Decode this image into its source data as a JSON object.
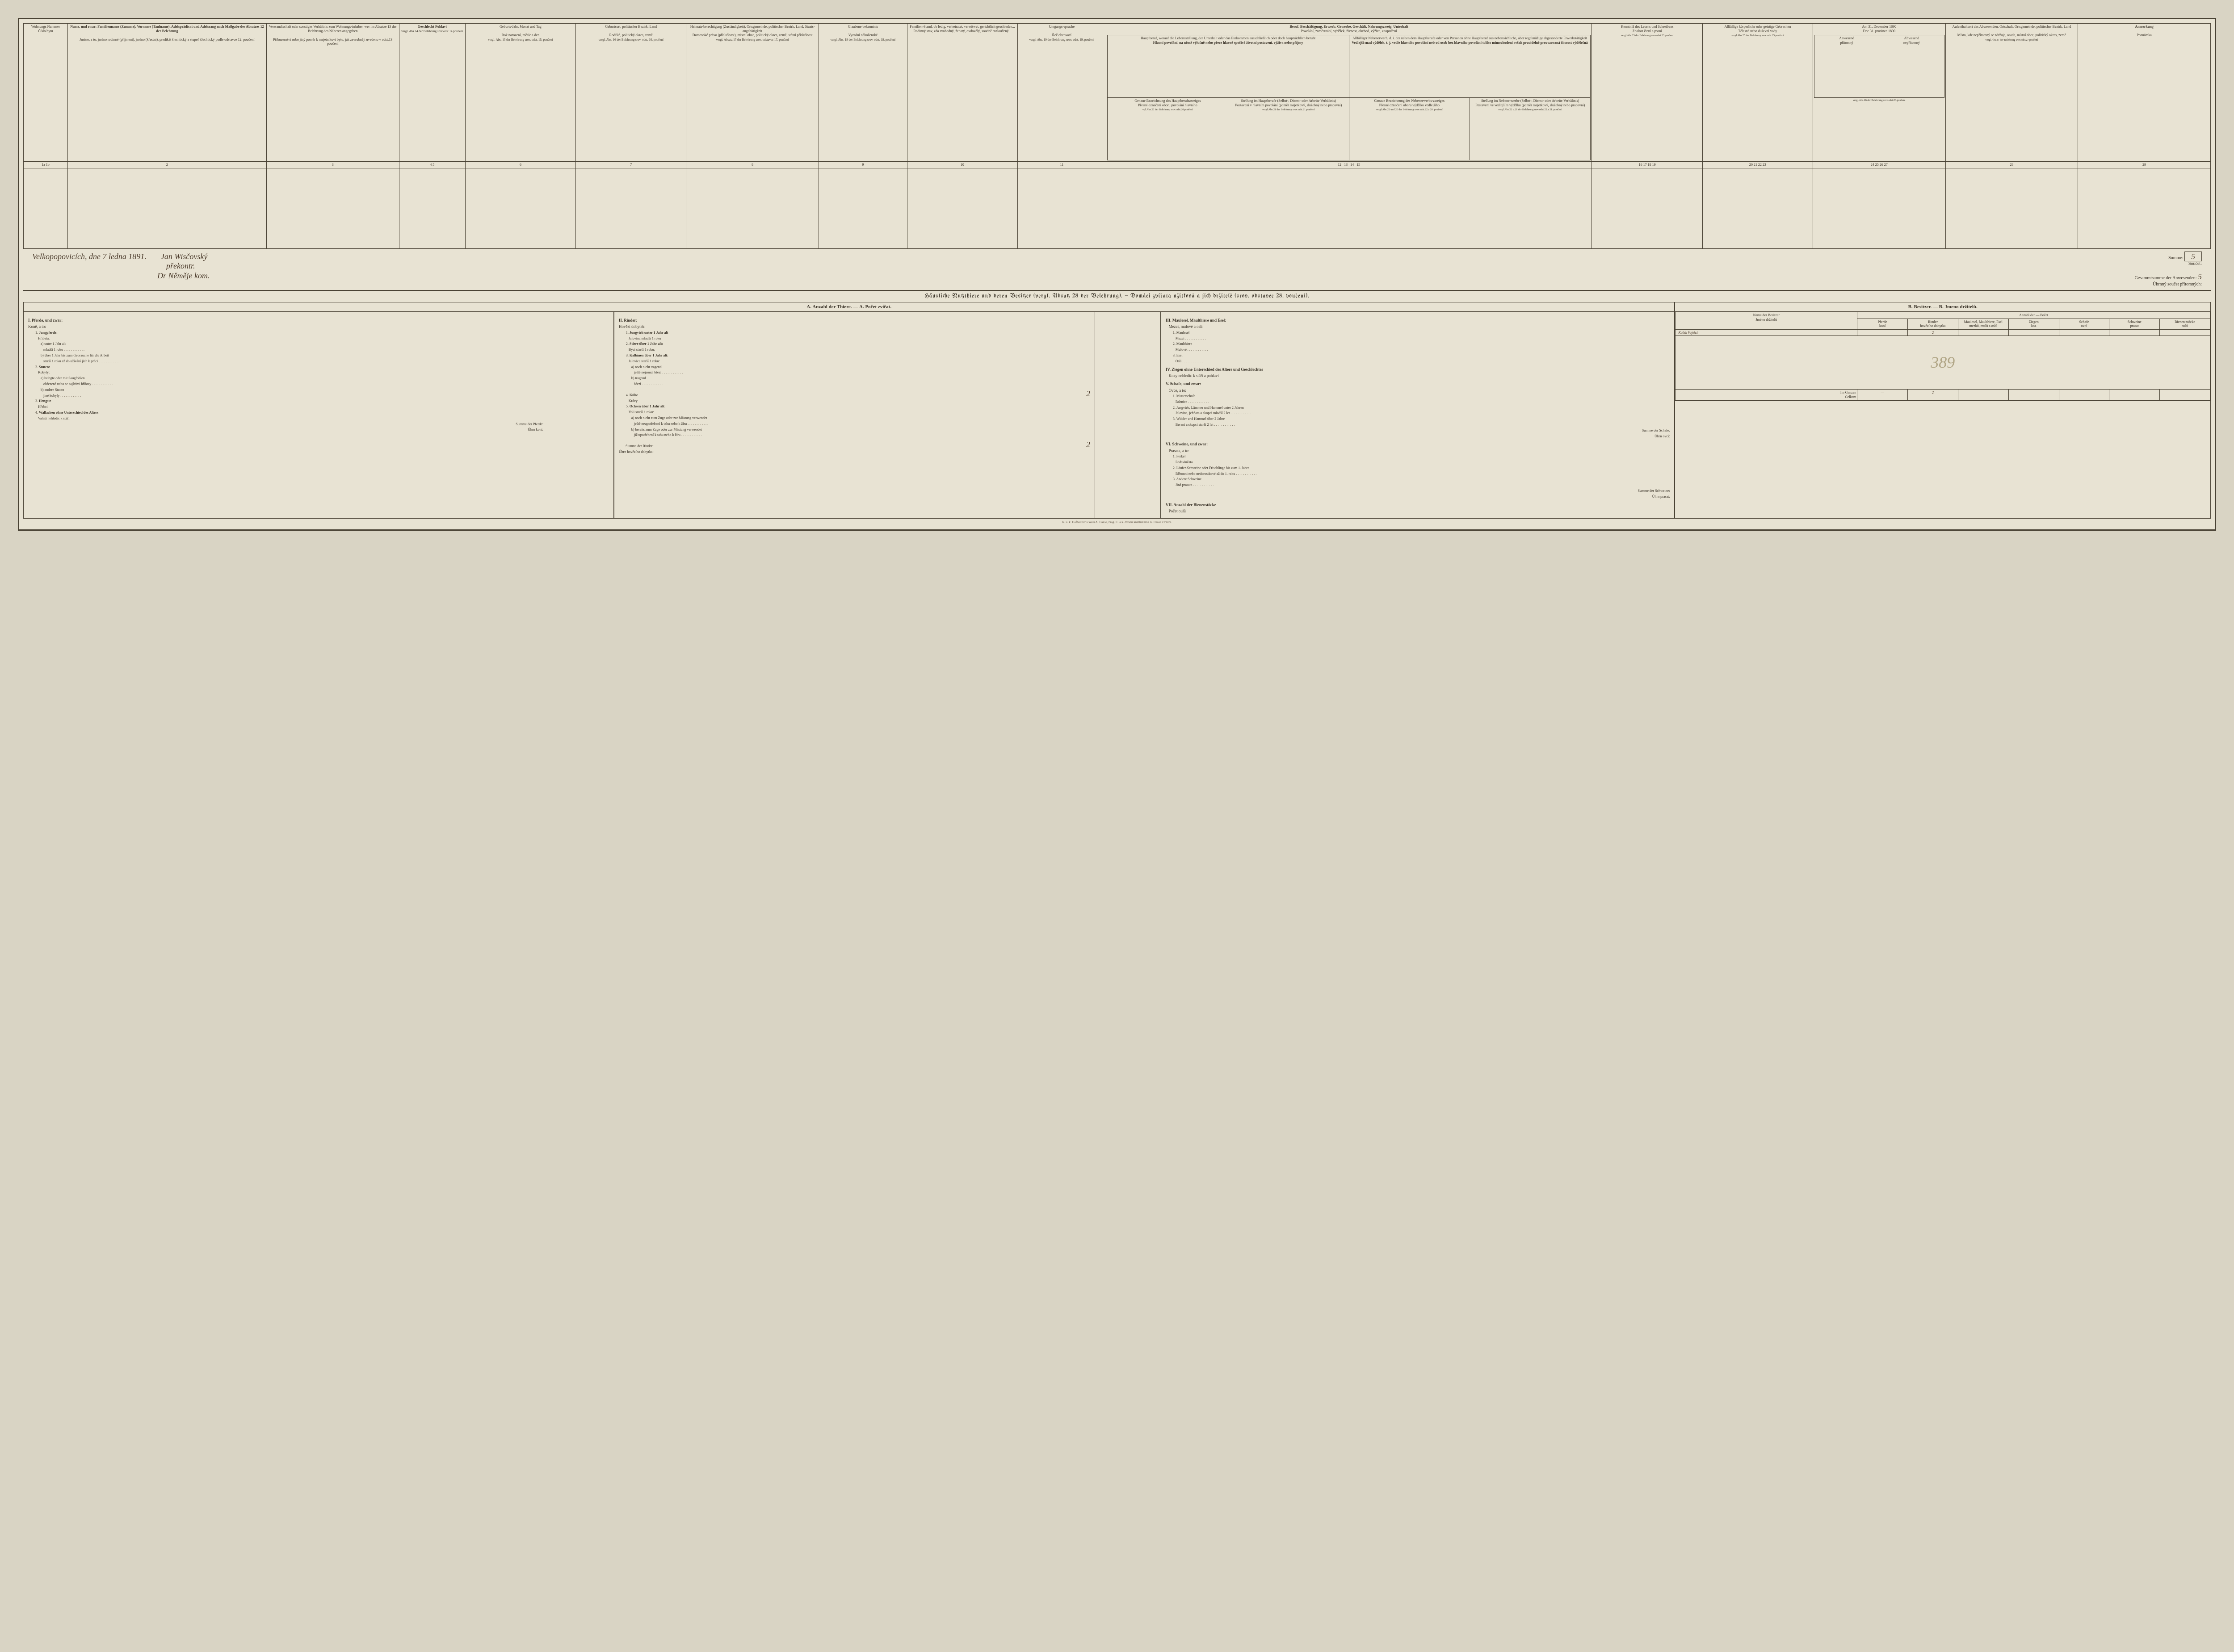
{
  "top_grid": {
    "columns": [
      {
        "num": "1a 1b",
        "de": "Wohnungs Nummer",
        "cz": "Číslo bytu"
      },
      {
        "num": "2",
        "de": "Name, und zwar: Familienname (Zuname), Vorname (Taufname), Adelsprädicat und Adelsrang nach Maßgabe des Absatzes 12 der Belehrung",
        "cz": "Jméno, a to: jméno rodinné (příjmení), jméno (křestní), predikát šlechtický a stupeň šlechtický podle odstavce 12. poučení"
      },
      {
        "num": "3",
        "de": "Verwandtschaft oder sonstiges Verhältnis zum Wohnungs-inhaber, wer im Absatze 13 der Belehrung des Näheren angegeben",
        "cz": "Příbuzenství nebo jiný poměr k majetníkovi bytu, jak zevrubněji uvedeno v odst.13 poučení"
      },
      {
        "num": "4 5",
        "de": "Geschlecht Pohlaví",
        "ref": "vergl. Abs.14 der Belehrung srov.odst.14 poučení",
        "sub_a": "männlich mužské",
        "sub_b": "weiblich ženské"
      },
      {
        "num": "6",
        "de": "Geburts-Jahr, Monat und Tag",
        "cz": "Rok narození, měsíc a den",
        "ref": "vergl. Abs. 15 der Belehrung srov. odst. 15. poučení"
      },
      {
        "num": "7",
        "de": "Geburtsort, politischer Bezirk, Land",
        "cz": "Rodiště, politický okres, země",
        "ref": "vergl. Abs. 16 der Belehrung srov. odst. 16. poučení"
      },
      {
        "num": "8",
        "de": "Heimats-berechtigung (Zuständigkeit), Ortsgemeinde, politischer Bezirk, Land, Staats-angehörigkeit",
        "cz": "Domovské právo (příslušnost), místní obec, politický okres, země, státní příslušnost",
        "ref": "vergl. Absatz 17 der Belehrung srov. odstavec 17. poučení"
      },
      {
        "num": "9",
        "de": "Glaubens-bekenntnis",
        "cz": "Vyznání náboženské",
        "ref": "vergl. Abs. 18 der Belehrung srov. odst. 18. poučení"
      },
      {
        "num": "10",
        "de": "Familien-Stand, ob ledig, verheiratet, verwitwet, gerichtlich geschieden...",
        "cz": "Rodinný stav, zda svobodný, ženatý, ovdovělý, soudně rozloučený..."
      },
      {
        "num": "11",
        "de": "Umgangs-sprache",
        "cz": "Řeč obcovací",
        "ref": "vergl. Abs. 19 der Belehrung srov. odst. 19. poučení"
      },
      {
        "num": "12-15",
        "de": "Beruf, Beschäftigung, Erwerb, Gewerbe, Geschäft, Nahrungszweig, Unterhalt",
        "cz": "Povolání, zaměstnání, výdělek, živnost, obchod, výživa, zaopatření",
        "subcols": [
          {
            "num": "12",
            "de": "Hauptberuf, worauf die Lebensstellung, der Unterhalt oder das Einkommen ausschließlich oder doch hauptsächlich beruht",
            "cz": "Hlavní povolání, na němž výlučně nebo přece hlavně spočívá životní postavení, výživa nebo příjmy",
            "de2": "Genaue Bezeichnung des Hauptberufszweiges",
            "cz2": "Přesné označení oboru povolání hlavního",
            "ref": "vgl.Abs.20 der Belehrung srov.odst.20.poučení"
          },
          {
            "num": "13",
            "de": "Stellung im Hauptberufe (Selbst-, Dienst- oder Arbeits-Verhältnis)",
            "cz": "Postavení v hlavním povolání (poměr majetkový, služebný nebo pracovní)",
            "ref": "vergl.Abs.21 der Belehrung srov.odst.21.poučení"
          },
          {
            "num": "14",
            "de": "Allfälliger Nebenerwerb, d. i. der neben dem Hauptberufe oder von Personen ohne Hauptberuf aus nebensächliche, aber regelmäßige abgesonderte Erwerbstätigkeit",
            "cz": "Vedlejší snad výdělek, t. j. vedle hlavního povolání neb od osob bez hlavního povolání toliko mimochodení avšak pravidelně provozovaná činnost výdělečná",
            "de2": "Genaue Bezeichnung des Nebenerwerbs-zweiges",
            "cz2": "Přesné označení oboru výdělku vedlejšího",
            "ref": "vergl.Abs.22 und 20 der Belehrung srov.odst.22.a 20. poučení"
          },
          {
            "num": "15",
            "de": "Stellung im Nebenerwerbe (Selbst-, Dienst- oder Arbeits-Verhältnis)",
            "cz": "Postavení ve vedlejším výdělku (poměr majetkový, služebný nebo pracovní)",
            "ref": "vergl.Abs.22 u.21 der Belehrung srov.odst.22.a 21. poučení"
          }
        ]
      },
      {
        "num": "16-19",
        "de": "Kenntniß des Lesens und Schreibens",
        "cz": "Znalost čtení a psaní",
        "ref": "vergl.Abs.23 der Belehrung srov.odst.23 poučení",
        "subcols": [
          {
            "num": "16",
            "de": "Besitzer dieses",
            "cz": "Držitel domu"
          },
          {
            "num": "17",
            "de": "Grundbesitzer",
            "cz": "Držitel pozemku"
          },
          {
            "num": "18",
            "de": "kann nur lesen",
            "cz": "zná toliko čísti"
          },
          {
            "num": "19",
            "de": "weder lesen noch schreiben",
            "cz": "ani čísti ani psáti"
          }
        ]
      },
      {
        "num": "20-23",
        "de": "Allfällige körperliche oder geistige Gebrechen",
        "cz": "Tělesné nebo duševní vady",
        "ref": "vergl.Abs.25 der Belehrung srov.odst.25.poučení",
        "subcols": [
          {
            "num": "20",
            "de": "blind auf beiden Augen",
            "cz": "na obě oči slepý"
          },
          {
            "num": "21",
            "de": "taubstumm",
            "cz": "hluchoněmý"
          },
          {
            "num": "22",
            "de": "irrsinnig",
            "cz": "choromyslný, blbý"
          },
          {
            "num": "23",
            "de": "Cretin",
            "cz": "kretin"
          }
        ]
      },
      {
        "num": "24-27",
        "de": "Am 31. December 1890",
        "cz": "Dne 31. prosince 1890",
        "subcols": [
          {
            "num": "24 25",
            "de": "Anwesend",
            "cz": "přítomný",
            "sub_a": "dauernd trvale",
            "sub_b": "zeitweilig na čas"
          },
          {
            "num": "26 27",
            "de": "Abwesend",
            "cz": "nepřítomný",
            "sub_a": "zeitweilig na čas",
            "sub_b": "dauernd trvale"
          }
        ],
        "ref": "vergl.Abs.26 der Belehrung srov.odst.26.poučení"
      },
      {
        "num": "28",
        "de": "Aufenthaltsort des Abwesenden, Ortschaft, Ortsgemeinde, politischer Bezirk, Land",
        "cz": "Místo, kde nepřítomný se zdržuje, osada, místní obec, politický okres, země",
        "ref": "vergl.Abs.27 der Belehrung srov.odst.27.poučení"
      },
      {
        "num": "29",
        "de": "Anmerkung",
        "cz": "Poznámka"
      }
    ]
  },
  "signature": {
    "place_date": "Velkopopovicích, dne 7 ledna 1891.",
    "sig1": "Jan Wisčovský",
    "sig2": "překontr.",
    "sig3": "Dr Něměje kom.",
    "summe_label_de": "Summe:",
    "summe_label_cz": "Součet:",
    "summe_val": "5",
    "gesamt_de": "Gesammtsumme der Anwesenden:",
    "gesamt_cz": "Úhrnný součet přítomných:",
    "gesamt_val": "5"
  },
  "animals": {
    "section_title_de": "Häusliche Nutzthiere und deren Besitzer (vergl. Absatz 28 der Belehrung).",
    "section_title_cz": "Domácí zvířata užitková a jich držitelé (srov. odstavec 28. poučení).",
    "subtitle_a_de": "A. Anzahl der Thiere.",
    "subtitle_a_cz": "A. Počet zvířat.",
    "subtitle_b_de": "B. Besitzer.",
    "subtitle_b_cz": "B. Jmeno držitelů.",
    "col1": {
      "head_de": "I. Pferde, und zwar:",
      "head_cz": "Koně, a to:",
      "items": [
        {
          "n": "1.",
          "de": "Jungpferde:",
          "cz": "Hříbata:",
          "subs": [
            {
              "l": "a)",
              "de": "unter 1 Jahr alt",
              "cz": "mladší 1 roku"
            },
            {
              "l": "b)",
              "de": "über 1 Jahr bis zum Gebrauche für die Arbeit",
              "cz": "starší 1 roku až do užívání jich k práci"
            }
          ]
        },
        {
          "n": "2.",
          "de": "Stuten:",
          "cz": "Kobyly:",
          "subs": [
            {
              "l": "a)",
              "de": "belegte oder mit Saugfohlen",
              "cz": "obřezené nebo se sajícími hříbaty"
            },
            {
              "l": "b)",
              "de": "andere Stuten",
              "cz": "jiné kobyly"
            }
          ]
        },
        {
          "n": "3.",
          "de": "Hengste",
          "cz": "Hřebci"
        },
        {
          "n": "4.",
          "de": "Wallachen ohne Unterschied des Alters",
          "cz": "Valaši nehledíc k stáří"
        }
      ],
      "sum_de": "Summe der Pferde:",
      "sum_cz": "Úhrn koní:"
    },
    "col2": {
      "head_de": "II. Rinder:",
      "head_cz": "Hovězí dobytek:",
      "items": [
        {
          "n": "1.",
          "de": "Jungvieh unter 1 Jahr alt",
          "cz": "Jalovina mladší 1 roku"
        },
        {
          "n": "2.",
          "de": "Stiere über 1 Jahr alt:",
          "cz": "Býci starší 1 roku:"
        },
        {
          "n": "3.",
          "de": "Kalbinen über 1 Jahr alt:",
          "cz": "Jalovice starší 1 roku:",
          "subs": [
            {
              "l": "a)",
              "de": "noch nicht tragend",
              "cz": "ještě nejsoucí březí"
            },
            {
              "l": "b)",
              "de": "tragend",
              "cz": "březí"
            }
          ]
        },
        {
          "n": "4.",
          "de": "Kühe",
          "cz": "Krávy",
          "val": "2"
        },
        {
          "n": "5.",
          "de": "Ochsen über 1 Jahr alt:",
          "cz": "Voli starší 1 roku:",
          "subs": [
            {
              "l": "a)",
              "de": "noch nicht zum Zuge oder zur Mästung verwendet",
              "cz": "ještě neupotřebení k tahu nebo k žíru"
            },
            {
              "l": "b)",
              "de": "bereits zum Zuge oder zur Mästung verwendet",
              "cz": "již upotřebení k tahu nebo k žíru"
            }
          ]
        }
      ],
      "sum_de": "Summe der Rinder:",
      "sum_cz": "Úhrn hovězího dobytka:",
      "sum_val": "2"
    },
    "col3": {
      "groups": [
        {
          "roman": "III.",
          "de": "Maulesel, Maulthiere und Esel:",
          "cz": "Mezci, mulové a osli:",
          "items": [
            {
              "n": "1.",
              "de": "Maulesel",
              "cz": "Mezci"
            },
            {
              "n": "2.",
              "de": "Maulthiere",
              "cz": "Mulové"
            },
            {
              "n": "3.",
              "de": "Esel",
              "cz": "Osli"
            }
          ]
        },
        {
          "roman": "IV.",
          "de": "Ziegen ohne Unterschied des Alters und Geschlechtes",
          "cz": "Kozy nehledíc k stáří a pohlaví"
        },
        {
          "roman": "V.",
          "de": "Schafe, und zwar:",
          "cz": "Ovce, a to:",
          "items": [
            {
              "n": "1.",
              "de": "Mutterschafe",
              "cz": "Bahnice"
            },
            {
              "n": "2.",
              "de": "Jungvieh, Lämmer und Hammel unter 2 Jahren",
              "cz": "Jalovina, jehňata a skopci mladší 2 let"
            },
            {
              "n": "3.",
              "de": "Widder und Hammel über 2 Jahre",
              "cz": "Berani a skopci starší 2 let"
            }
          ],
          "sum_de": "Summe der Schafe:",
          "sum_cz": "Úhrn ovcí:"
        },
        {
          "roman": "VI.",
          "de": "Schweine, und zwar:",
          "cz": "Prasata, a to:",
          "items": [
            {
              "n": "1.",
              "de": "Ferkel",
              "cz": "Podsvinčata"
            },
            {
              "n": "2.",
              "de": "Läufer-Schweine oder Frischlinge bis zum 1. Jahre",
              "cz": "Běhouni nebo nedorostkové až do 1. roku"
            },
            {
              "n": "3.",
              "de": "Andere Schweine",
              "cz": "Jiná prasata"
            }
          ],
          "sum_de": "Summe der Schweine:",
          "sum_cz": "Úhrn prasat:"
        },
        {
          "roman": "VII.",
          "de": "Anzahl der Bienenstöcke",
          "cz": "Počet oulů"
        }
      ]
    },
    "owners": {
      "head_name_de": "Name der Besitzer",
      "head_name_cz": "Jméno držitelů",
      "head_count_de": "Anzahl der",
      "head_count_cz": "Počet",
      "cols": [
        {
          "de": "Pferde",
          "cz": "koní"
        },
        {
          "de": "Rinder",
          "cz": "hovězího dobytka"
        },
        {
          "de": "Maulesel, Maulthiere, Esel",
          "cz": "mezků, mulů a oslů"
        },
        {
          "de": "Ziegen",
          "cz": "koz"
        },
        {
          "de": "Schafe",
          "cz": "ovcí"
        },
        {
          "de": "Schweine",
          "cz": "prasat"
        },
        {
          "de": "Bienen-stöcke",
          "cz": "oulů"
        }
      ],
      "rows": [
        {
          "name": "Kubík Vojtěch",
          "vals": [
            "—",
            "2",
            "",
            "",
            "",
            "",
            ""
          ]
        }
      ],
      "scribble": "389",
      "total_de": "Im Ganzen",
      "total_cz": "Celkem",
      "total_vals": [
        "—",
        "2",
        "",
        "",
        "",
        "",
        ""
      ]
    }
  },
  "footer": "K. u. k. Hofbuchdruckerei A. Haase, Prag.   C. a k. dvorní knihtiskárna A. Haase v Praze."
}
